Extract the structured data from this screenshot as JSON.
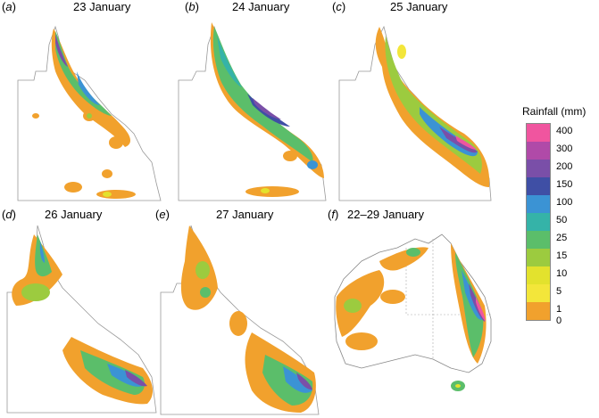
{
  "panels": [
    {
      "letter": "a",
      "title": "23 January"
    },
    {
      "letter": "b",
      "title": "24 January"
    },
    {
      "letter": "c",
      "title": "25 January"
    },
    {
      "letter": "d",
      "title": "26 January"
    },
    {
      "letter": "e",
      "title": "27 January"
    },
    {
      "letter": "f",
      "title": "22–29 January"
    }
  ],
  "legend": {
    "title": "Rainfall (mm)",
    "ticks": [
      "400",
      "300",
      "200",
      "150",
      "100",
      "50",
      "25",
      "15",
      "10",
      "5",
      "1",
      "0"
    ],
    "colors": [
      "#f0559f",
      "#b04aa8",
      "#7a4fa8",
      "#3f4fa5",
      "#3b93d4",
      "#35b3a8",
      "#5bbe6a",
      "#9ccb3f",
      "#e3e22d",
      "#f3e63a",
      "#f1a12d",
      "#ffffff"
    ]
  }
}
